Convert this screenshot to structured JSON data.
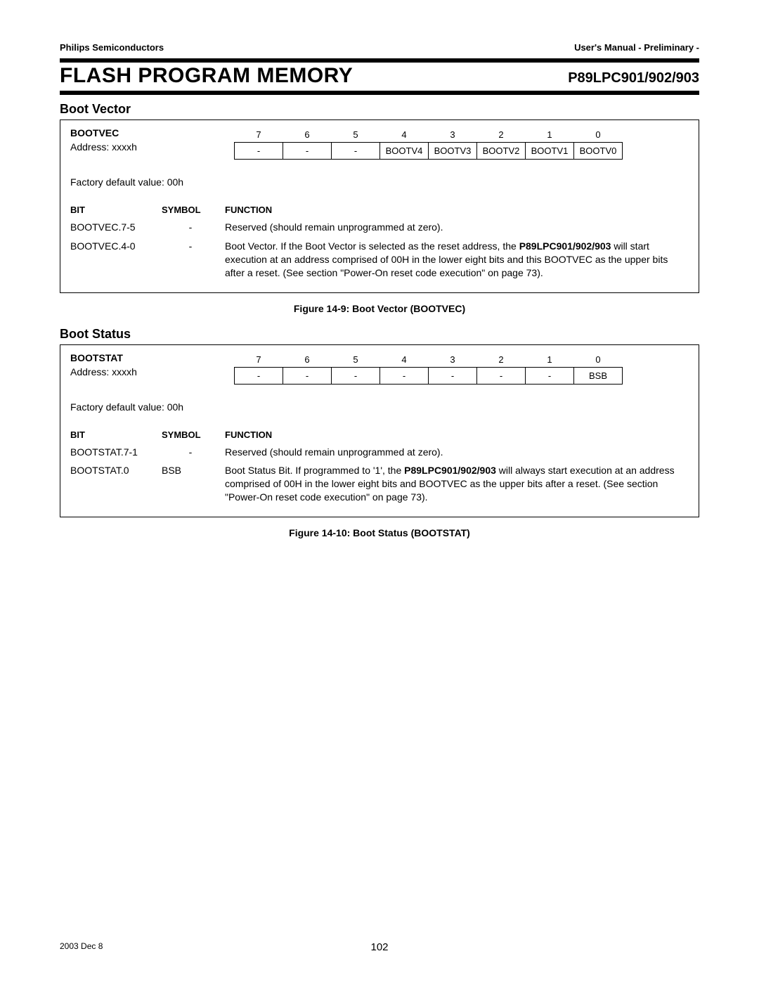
{
  "header": {
    "company": "Philips Semiconductors",
    "doc_type": "User's Manual - Preliminary -",
    "main_title": "FLASH PROGRAM MEMORY",
    "part_number": "P89LPC901/902/903"
  },
  "sections": {
    "boot_vector": {
      "heading": "Boot Vector",
      "reg_name": "BOOTVEC",
      "address_label": "Address: xxxxh",
      "default_label": "Factory default value: 00h",
      "bit_numbers": [
        "7",
        "6",
        "5",
        "4",
        "3",
        "2",
        "1",
        "0"
      ],
      "bit_cells": [
        "-",
        "-",
        "-",
        "BOOTV4",
        "BOOTV3",
        "BOOTV2",
        "BOOTV1",
        "BOOTV0"
      ],
      "func_header": {
        "bit": "BIT",
        "symbol": "SYMBOL",
        "function": "FUNCTION"
      },
      "rows": [
        {
          "bit": "BOOTVEC.7-5",
          "symbol": "-",
          "function_plain": "Reserved (should remain unprogrammed at zero)."
        },
        {
          "bit": "BOOTVEC.4-0",
          "symbol": "-",
          "function_pre": "Boot Vector. If the Boot Vector is selected as the reset address, the ",
          "function_bold": "P89LPC901/902/903",
          "function_post": " will start execution at an address comprised of 00H in the lower eight bits and this BOOTVEC as the upper bits after a reset. (See section \"Power-On reset code execution\" on page 73)."
        }
      ],
      "caption": "Figure 14-9: Boot Vector (BOOTVEC)"
    },
    "boot_status": {
      "heading": "Boot Status",
      "reg_name": "BOOTSTAT",
      "address_label": "Address: xxxxh",
      "default_label": "Factory default value: 00h",
      "bit_numbers": [
        "7",
        "6",
        "5",
        "4",
        "3",
        "2",
        "1",
        "0"
      ],
      "bit_cells": [
        "-",
        "-",
        "-",
        "-",
        "-",
        "-",
        "-",
        "BSB"
      ],
      "func_header": {
        "bit": "BIT",
        "symbol": "SYMBOL",
        "function": "FUNCTION"
      },
      "rows": [
        {
          "bit": "BOOTSTAT.7-1",
          "symbol": "-",
          "function_plain": "Reserved (should remain unprogrammed at zero)."
        },
        {
          "bit": "BOOTSTAT.0",
          "symbol": "BSB",
          "function_pre": "Boot Status Bit. If programmed to '1', the ",
          "function_bold": "P89LPC901/902/903",
          "function_post": " will always start execution at an address comprised of 00H in the lower eight bits and BOOTVEC as the upper bits after a reset. (See section \"Power-On reset code execution\" on page 73)."
        }
      ],
      "caption": "Figure 14-10: Boot Status (BOOTSTAT)"
    }
  },
  "footer": {
    "date": "2003 Dec 8",
    "page": "102"
  }
}
